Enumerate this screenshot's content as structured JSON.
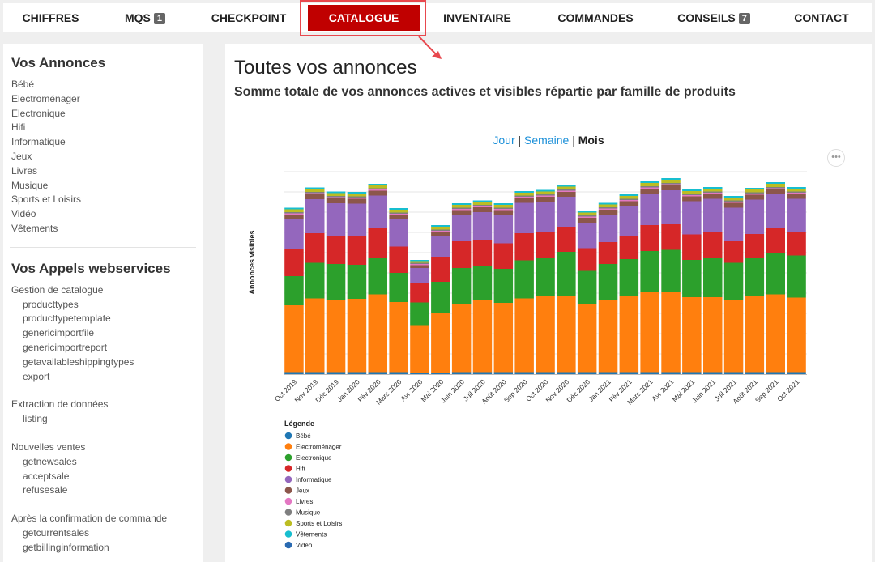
{
  "nav": [
    {
      "label": "CHIFFRES",
      "badge": null
    },
    {
      "label": "MQS",
      "badge": "1"
    },
    {
      "label": "CHECKPOINT",
      "badge": null
    },
    {
      "label": "CATALOGUE",
      "badge": null
    },
    {
      "label": "INVENTAIRE",
      "badge": null
    },
    {
      "label": "COMMANDES",
      "badge": null
    },
    {
      "label": "CONSEILS",
      "badge": "7"
    },
    {
      "label": "CONTACT",
      "badge": null
    }
  ],
  "sidebar": {
    "annonces_title": "Vos Annonces",
    "annonces": [
      "Bébé",
      "Electroménager",
      "Electronique",
      "Hifi",
      "Informatique",
      "Jeux",
      "Livres",
      "Musique",
      "Sports et Loisirs",
      "Vidéo",
      "Vêtements"
    ],
    "ws_title": "Vos Appels webservices",
    "ws_groups": [
      {
        "title": "Gestion de catalogue",
        "items": [
          "producttypes",
          "producttypetemplate",
          "genericimportfile",
          "genericimportreport",
          "getavailableshippingtypes",
          "export"
        ]
      },
      {
        "title": "Extraction de données",
        "items": [
          "listing"
        ]
      },
      {
        "title": "Nouvelles ventes",
        "items": [
          "getnewsales",
          "acceptsale",
          "refusesale"
        ]
      },
      {
        "title": "Après la confirmation de commande",
        "items": [
          "getcurrentsales",
          "getbillinginformation"
        ]
      }
    ]
  },
  "main": {
    "title": "Toutes vos annonces",
    "subtitle": "Somme totale de vos annonces actives et visibles répartie par famille de produits",
    "period_jour": "Jour",
    "period_semaine": "Semaine",
    "period_mois": "Mois",
    "period_sep": "|",
    "more": "•••"
  },
  "colors": {
    "accent": "#c00000",
    "highlight": "#e8484e",
    "link": "#1a8fd8"
  },
  "chart_data": {
    "type": "bar",
    "stacked": true,
    "ylabel": "Annonces visibles",
    "legend_title": "Légende",
    "legend_position": "bottom-left",
    "categories": [
      "Oct 2019",
      "Nov 2019",
      "Déc 2019",
      "Jan 2020",
      "Fév 2020",
      "Mars 2020",
      "Avr 2020",
      "Mai 2020",
      "Juin 2020",
      "Juil 2020",
      "Août 2020",
      "Sep 2020",
      "Oct 2020",
      "Nov 2020",
      "Déc 2020",
      "Jan 2021",
      "Fév 2021",
      "Mars 2021",
      "Avr 2021",
      "Mai 2021",
      "Juin 2021",
      "Juil 2021",
      "Août 2021",
      "Sep 2021",
      "Oct 2021"
    ],
    "ylim": [
      0,
      100
    ],
    "series": [
      {
        "name": "Bébé",
        "color": "#1f77b4",
        "values": [
          1.0,
          1.0,
          1.0,
          1.0,
          1.0,
          1.0,
          0.6,
          0.8,
          1.0,
          1.0,
          1.0,
          1.0,
          1.0,
          1.0,
          1.0,
          1.0,
          1.0,
          1.0,
          1.0,
          1.0,
          1.0,
          1.0,
          1.0,
          1.0,
          1.0
        ]
      },
      {
        "name": "Electroménager",
        "color": "#ff7f0e",
        "values": [
          33.0,
          36.4,
          35.6,
          36.2,
          38.4,
          34.6,
          23.6,
          29.2,
          33.8,
          35.6,
          34.2,
          36.4,
          37.4,
          37.8,
          33.6,
          35.8,
          37.6,
          39.6,
          39.6,
          37.0,
          37.0,
          35.8,
          37.4,
          38.4,
          36.8
        ]
      },
      {
        "name": "Electronique",
        "color": "#2ca02c",
        "values": [
          14.4,
          17.6,
          17.8,
          16.8,
          18.2,
          14.4,
          11.2,
          15.6,
          17.6,
          16.8,
          16.8,
          18.8,
          19.0,
          21.6,
          16.4,
          17.6,
          18.2,
          20.2,
          20.8,
          18.4,
          19.6,
          18.2,
          19.2,
          20.2,
          20.8
        ]
      },
      {
        "name": "Hifi",
        "color": "#d62728",
        "values": [
          13.6,
          14.6,
          14.0,
          14.0,
          14.4,
          13.0,
          9.4,
          12.4,
          13.4,
          13.0,
          12.6,
          13.4,
          12.6,
          12.4,
          11.2,
          10.8,
          11.6,
          12.8,
          12.8,
          12.6,
          12.4,
          11.0,
          11.6,
          12.4,
          11.6
        ]
      },
      {
        "name": "Informatique",
        "color": "#9467bd",
        "values": [
          14.4,
          16.8,
          16.0,
          16.2,
          16.2,
          13.4,
          7.6,
          10.2,
          12.8,
          13.6,
          14.0,
          15.0,
          15.2,
          14.8,
          12.6,
          13.6,
          14.6,
          15.6,
          16.6,
          16.4,
          16.6,
          16.2,
          17.0,
          16.8,
          16.4
        ]
      },
      {
        "name": "Jeux",
        "color": "#8c564b",
        "values": [
          2.4,
          2.4,
          2.4,
          2.4,
          2.4,
          2.2,
          1.4,
          2.0,
          2.4,
          2.4,
          2.4,
          2.4,
          2.4,
          2.4,
          2.4,
          2.4,
          2.4,
          2.4,
          2.4,
          2.4,
          2.4,
          2.4,
          2.4,
          2.4,
          2.4
        ]
      },
      {
        "name": "Livres",
        "color": "#e377c2",
        "values": [
          0.6,
          0.6,
          0.6,
          0.6,
          0.6,
          0.6,
          0.6,
          0.6,
          0.6,
          0.6,
          0.6,
          0.6,
          0.6,
          0.6,
          0.6,
          0.6,
          0.6,
          0.6,
          0.6,
          0.6,
          0.6,
          0.6,
          0.6,
          0.6,
          0.6
        ]
      },
      {
        "name": "Musique",
        "color": "#7f7f7f",
        "values": [
          0.6,
          0.6,
          0.6,
          0.6,
          0.6,
          0.6,
          0.6,
          0.6,
          0.6,
          0.6,
          0.6,
          0.6,
          0.6,
          0.6,
          0.6,
          0.6,
          0.6,
          0.6,
          0.6,
          0.6,
          0.6,
          0.6,
          0.6,
          0.6,
          0.6
        ]
      },
      {
        "name": "Sports et Loisirs",
        "color": "#bcbd22",
        "values": [
          1.4,
          1.4,
          1.4,
          1.4,
          1.4,
          1.4,
          0.8,
          1.4,
          1.4,
          1.4,
          1.4,
          1.4,
          1.4,
          1.4,
          1.4,
          1.4,
          1.4,
          1.6,
          1.6,
          1.4,
          1.4,
          1.4,
          1.4,
          1.6,
          1.4
        ]
      },
      {
        "name": "Vêtements",
        "color": "#17becf",
        "values": [
          0.8,
          0.8,
          0.8,
          0.8,
          0.8,
          0.8,
          0.6,
          0.8,
          0.8,
          0.8,
          0.8,
          0.8,
          0.8,
          0.8,
          0.8,
          0.8,
          0.8,
          0.8,
          0.8,
          0.8,
          0.8,
          0.8,
          0.8,
          0.8,
          0.8
        ]
      },
      {
        "name": "Vidéo",
        "color": "#2a6ab1",
        "values": [
          0,
          0,
          0,
          0,
          0,
          0,
          0,
          0,
          0,
          0,
          0,
          0,
          0,
          0,
          0,
          0,
          0,
          0,
          0,
          0,
          0,
          0,
          0,
          0,
          0
        ]
      }
    ]
  }
}
